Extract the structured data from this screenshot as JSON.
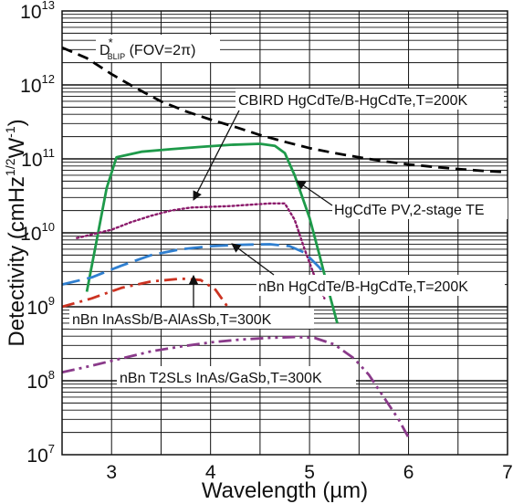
{
  "chart_data": {
    "type": "line",
    "xlabel": "Wavelength (µm)",
    "ylabel": "Detectivity (cmHz",
    "ylabel_sup1": "1/2",
    "ylabel_mid": "W",
    "ylabel_sup2": "-1",
    "ylabel_end": ")",
    "xlim": [
      2.5,
      7
    ],
    "ylim": [
      10000000.0,
      10000000000000.0
    ],
    "yscale": "log",
    "grid": true,
    "x_ticks": [
      "3",
      "4",
      "5",
      "6",
      "7"
    ],
    "y_ticks": [
      {
        "base": "10",
        "exp": "7"
      },
      {
        "base": "10",
        "exp": "8"
      },
      {
        "base": "10",
        "exp": "9"
      },
      {
        "base": "10",
        "exp": "10"
      },
      {
        "base": "10",
        "exp": "11"
      },
      {
        "base": "10",
        "exp": "12"
      },
      {
        "base": "10",
        "exp": "13"
      }
    ],
    "series": [
      {
        "key": "dblip",
        "color": "#000000",
        "dash": "dashed",
        "x": [
          2.5,
          2.75,
          3.0,
          3.25,
          3.5,
          3.75,
          4.0,
          4.25,
          4.5,
          4.75,
          5.0,
          5.25,
          5.5,
          5.75,
          6.0,
          6.25,
          6.5,
          6.75,
          7.0
        ],
        "y": [
          3200000000000.0,
          2300000000000.0,
          1400000000000.0,
          900000000000.0,
          600000000000.0,
          440000000000.0,
          340000000000.0,
          270000000000.0,
          210000000000.0,
          170000000000.0,
          140000000000.0,
          120000000000.0,
          105000000000.0,
          93000000000.0,
          84000000000.0,
          78000000000.0,
          73000000000.0,
          69000000000.0,
          66000000000.0
        ]
      },
      {
        "key": "cbird",
        "color": "#1e9a4a",
        "dash": "solid",
        "x": [
          2.75,
          2.85,
          2.95,
          3.05,
          3.3,
          3.6,
          3.9,
          4.2,
          4.5,
          4.65,
          4.75,
          4.85,
          5.0,
          5.1,
          5.2,
          5.28
        ],
        "y": [
          1600000000.0,
          8000000000.0,
          40000000000.0,
          105000000000.0,
          125000000000.0,
          135000000000.0,
          145000000000.0,
          155000000000.0,
          160000000000.0,
          150000000000.0,
          120000000000.0,
          60000000000.0,
          16000000000.0,
          5000000000.0,
          1500000000.0,
          600000000.0
        ]
      },
      {
        "key": "pv",
        "color": "#8b1a6b",
        "dash": "dotted",
        "x": [
          2.65,
          2.8,
          3.0,
          3.2,
          3.4,
          3.6,
          3.8,
          4.0,
          4.2,
          4.4,
          4.6,
          4.75,
          4.85,
          4.95,
          5.05,
          5.15
        ],
        "y": [
          8500000000.0,
          9500000000.0,
          11000000000.0,
          14000000000.0,
          17000000000.0,
          20000000000.0,
          22000000000.0,
          22500000000.0,
          23000000000.0,
          24000000000.0,
          25000000000.0,
          25000000000.0,
          15000000000.0,
          6000000000.0,
          2600000000.0,
          1300000000.0
        ]
      },
      {
        "key": "nbn_hgcdte",
        "color": "#2f7fd0",
        "dash": "longdash",
        "x": [
          2.5,
          2.8,
          3.1,
          3.4,
          3.7,
          4.0,
          4.3,
          4.6,
          4.8,
          4.95,
          5.1,
          5.2
        ],
        "y": [
          2000000000.0,
          2500000000.0,
          3600000000.0,
          5000000000.0,
          6000000000.0,
          6600000000.0,
          6900000000.0,
          7000000000.0,
          6600000000.0,
          5400000000.0,
          3400000000.0,
          2200000000.0
        ]
      },
      {
        "key": "nbn_inassb",
        "color": "#cc3322",
        "dash": "dashdot",
        "x": [
          2.5,
          2.8,
          3.1,
          3.4,
          3.7,
          3.9,
          4.05,
          4.15,
          4.25
        ],
        "y": [
          1000000000.0,
          1300000000.0,
          1800000000.0,
          2200000000.0,
          2400000000.0,
          2300000000.0,
          1700000000.0,
          1100000000.0,
          700000000.0
        ]
      },
      {
        "key": "nbn_t2sls",
        "color": "#8a3a8a",
        "dash": "dashdotdot",
        "x": [
          2.5,
          2.8,
          3.1,
          3.4,
          3.7,
          4.0,
          4.3,
          4.6,
          4.85,
          5.05,
          5.25,
          5.45,
          5.6,
          5.75,
          5.9,
          6.0
        ],
        "y": [
          130000000.0,
          160000000.0,
          200000000.0,
          250000000.0,
          290000000.0,
          330000000.0,
          360000000.0,
          380000000.0,
          390000000.0,
          380000000.0,
          310000000.0,
          200000000.0,
          120000000.0,
          60000000.0,
          30000000.0,
          17000000.0
        ]
      }
    ],
    "annotations": {
      "dblip_main": "D",
      "dblip_sup": "*",
      "dblip_sub": "BLIP",
      "dblip_rest": " (FOV=2π)",
      "cbird": "CBIRD HgCdTe/B-HgCdTe,T=200K",
      "pv": "HgCdTe PV,2-stage TE",
      "nbn_hgcdte": "nBn HgCdTe/B-HgCdTe,T=200K",
      "nbn_inassb": "nBn InAsSb/B-AlAsSb,T=300K",
      "nbn_t2sls": "nBn T2SLs InAs/GaSb,T=300K"
    }
  }
}
